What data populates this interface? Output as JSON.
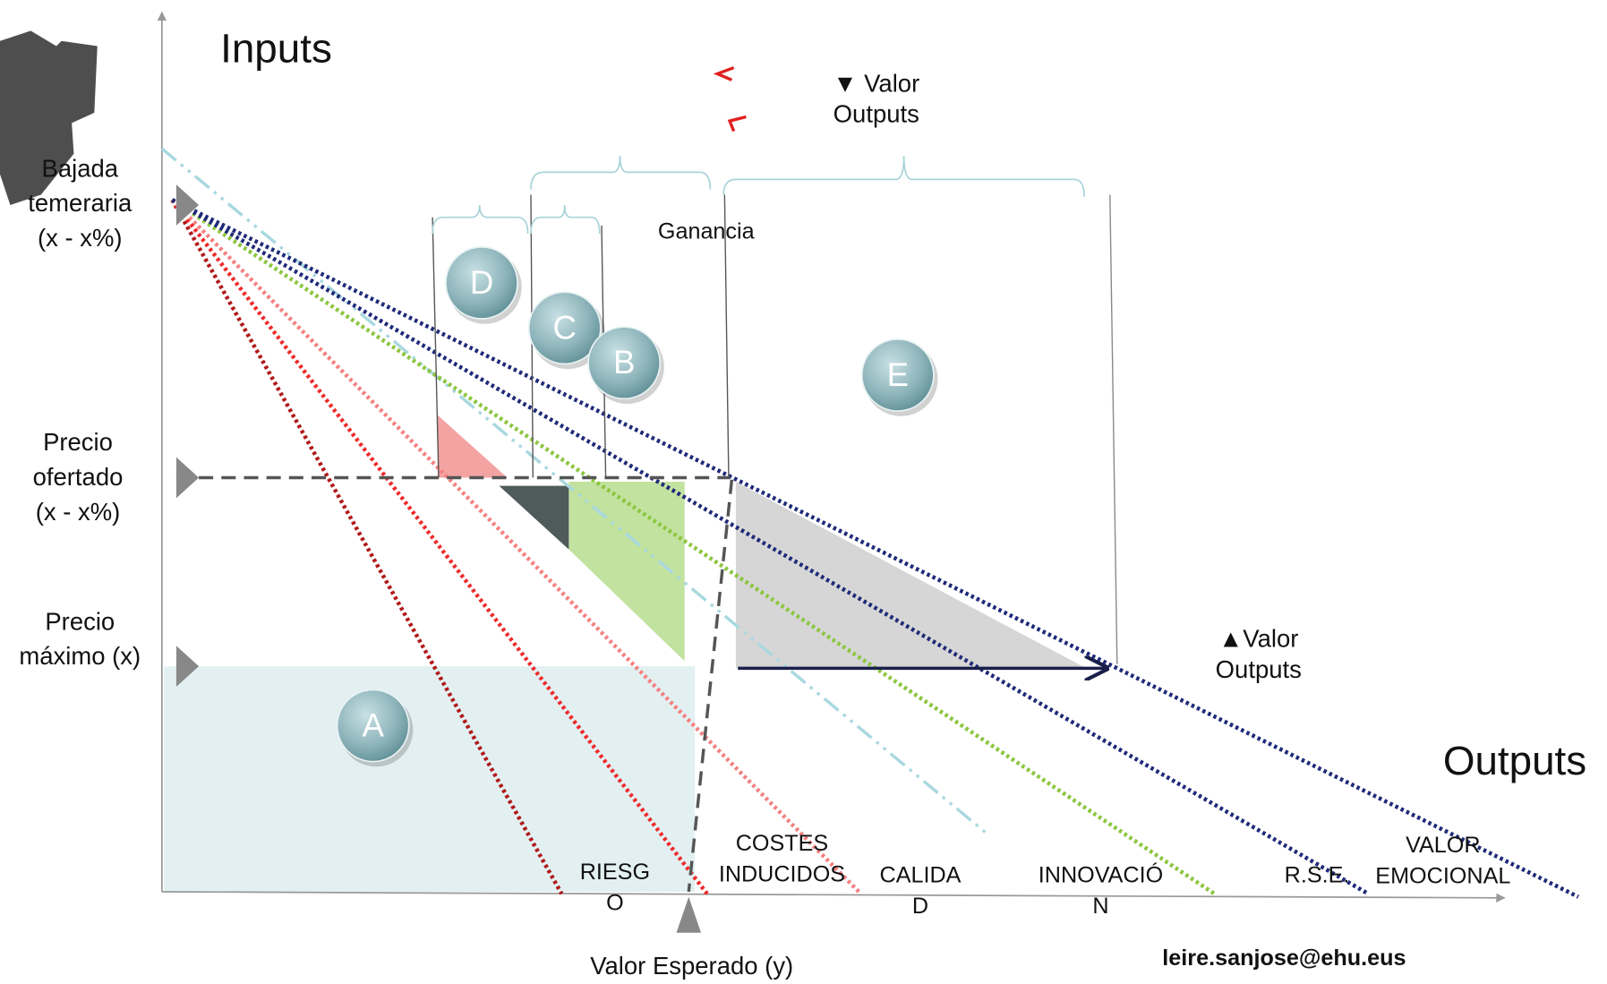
{
  "axes": {
    "y_label": "Inputs",
    "x_label": "Outputs"
  },
  "left_labels": [
    {
      "lines": [
        "Bajada",
        "temeraria",
        "(x - x%)"
      ]
    },
    {
      "lines": [
        "Precio",
        "ofertado",
        "(x - x%)"
      ]
    },
    {
      "lines": [
        "Precio",
        "máximo (x)"
      ]
    }
  ],
  "value_labels": [
    {
      "lines": [
        "▼ Valor",
        "Outputs"
      ]
    },
    {
      "lines": [
        "▲Valor",
        "Outputs"
      ]
    }
  ],
  "gain_label": "Ganancia",
  "circles": [
    "D",
    "C",
    "B",
    "E",
    "A"
  ],
  "categories": [
    {
      "lines": [
        "RIESG",
        "O"
      ]
    },
    {
      "lines": [
        "COSTES",
        "INDUCIDOS"
      ]
    },
    {
      "lines": [
        "CALIDA",
        "D"
      ]
    },
    {
      "lines": [
        "INNOVACIÓ",
        "N"
      ]
    },
    {
      "lines": [
        "R.S.E."
      ]
    },
    {
      "lines": [
        "VALOR",
        "EMOCIONAL"
      ]
    }
  ],
  "expected_value": "Valor Esperado (y)",
  "email": "leire.sanjose@ehu.eus"
}
